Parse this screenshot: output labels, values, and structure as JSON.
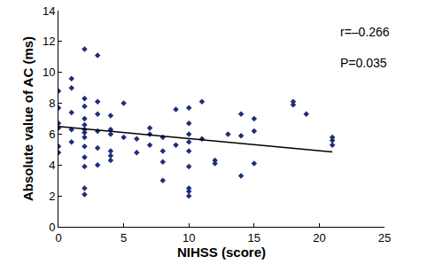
{
  "chart_data": {
    "type": "scatter",
    "x_label": "NIHSS (score)",
    "y_label": "Absolute value of AC (ms)",
    "xlim": [
      0,
      25
    ],
    "xticks": [
      0,
      5,
      10,
      15,
      20,
      25
    ],
    "ylim": [
      0,
      14
    ],
    "yticks": [
      0,
      2,
      4,
      6,
      8,
      10,
      12,
      14
    ],
    "grid": false,
    "annotations": [
      "r=–0.266",
      "P=0.035"
    ],
    "series": [
      {
        "type": "scatter",
        "marker": "diamond",
        "color": "#1f2d7a",
        "x": [
          0,
          0,
          0,
          0,
          0,
          0,
          1,
          1,
          1,
          1,
          1,
          2,
          2,
          2,
          2,
          2,
          2,
          2,
          2,
          2,
          2,
          2,
          2,
          2,
          3,
          3,
          3,
          3,
          3,
          3,
          4,
          4,
          4,
          4,
          4,
          4,
          5,
          5,
          6,
          6,
          7,
          7,
          7,
          8,
          8,
          8,
          8,
          9,
          9,
          10,
          10,
          10,
          10,
          10,
          10,
          10,
          10,
          10,
          11,
          11,
          12,
          12,
          13,
          14,
          14,
          14,
          15,
          15,
          15,
          18,
          18,
          19,
          21,
          21,
          21
        ],
        "values": [
          8.8,
          7.7,
          6.7,
          6.4,
          5.2,
          4.8,
          9.6,
          9.0,
          7.4,
          6.3,
          5.5,
          11.5,
          8.3,
          7.8,
          7.0,
          6.6,
          6.3,
          6.1,
          5.8,
          5.2,
          4.5,
          3.9,
          2.5,
          2.1,
          11.1,
          8.1,
          7.3,
          6.2,
          5.1,
          4.0,
          7.2,
          6.3,
          6.0,
          4.9,
          4.6,
          4.3,
          8.0,
          5.8,
          5.7,
          4.8,
          6.4,
          6.0,
          5.3,
          5.8,
          4.9,
          4.2,
          3.0,
          7.6,
          5.3,
          7.7,
          6.7,
          6.0,
          5.5,
          4.9,
          3.9,
          2.5,
          2.3,
          2.0,
          8.1,
          5.7,
          4.3,
          4.1,
          6.0,
          7.3,
          5.9,
          3.3,
          7.0,
          6.2,
          4.1,
          8.1,
          7.9,
          7.3,
          5.8,
          5.6,
          5.3
        ]
      },
      {
        "type": "line",
        "color": "#000000",
        "line_style": "solid",
        "x": [
          0,
          21
        ],
        "values": [
          6.5,
          4.85
        ]
      }
    ]
  }
}
